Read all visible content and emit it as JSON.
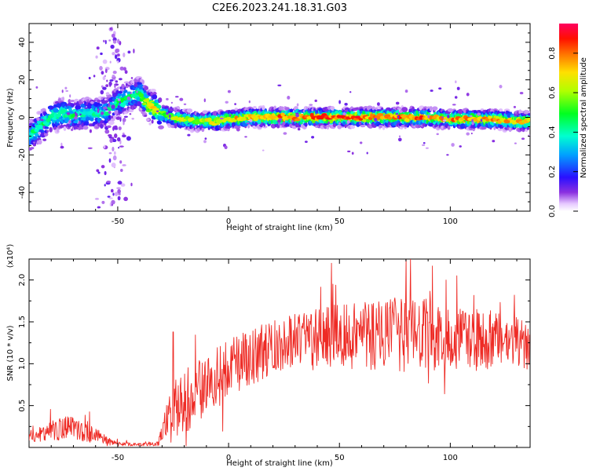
{
  "title": "C2E6.2023.241.18.31.G03",
  "chart_data": [
    {
      "type": "heatmap",
      "xlabel": "Height of straight line (km)",
      "ylabel": "Frequency (Hz)",
      "xlim": [
        -90,
        136
      ],
      "ylim": [
        -50,
        50
      ],
      "xticks": [
        -50,
        0,
        50,
        100
      ],
      "yticks": [
        -40,
        -20,
        0,
        20,
        40
      ],
      "colorbar": {
        "label": "Normalized spectral amplitude",
        "range": [
          0.0,
          0.95
        ],
        "ticks": [
          0.0,
          0.2,
          0.4,
          0.6,
          0.8
        ]
      },
      "ridge": {
        "height_km": [
          -90,
          -85,
          -80,
          -75,
          -70,
          -65,
          -60,
          -55,
          -50,
          -45,
          -40,
          -36,
          -33,
          -30,
          -25,
          -20,
          -15,
          -10,
          -5,
          0,
          10,
          20,
          30,
          40,
          50,
          60,
          70,
          80,
          90,
          100,
          110,
          120,
          130,
          136
        ],
        "frequency_hz": [
          -11,
          -5,
          0,
          2,
          1,
          2,
          2,
          3,
          8,
          11,
          13,
          6,
          5,
          2,
          0,
          -1,
          -2,
          -2,
          -2,
          -1,
          0,
          0,
          0,
          0,
          0,
          0,
          0,
          0,
          0,
          -1,
          -1,
          -1,
          -2,
          -2
        ],
        "amplitude": [
          0.45,
          0.5,
          0.5,
          0.5,
          0.5,
          0.45,
          0.45,
          0.45,
          0.5,
          0.5,
          0.55,
          0.8,
          0.8,
          0.6,
          0.7,
          0.75,
          0.7,
          0.75,
          0.75,
          0.8,
          0.85,
          0.9,
          0.9,
          0.9,
          0.92,
          0.92,
          0.9,
          0.9,
          0.88,
          0.85,
          0.85,
          0.85,
          0.8,
          0.8
        ]
      }
    },
    {
      "type": "line",
      "xlabel": "Height of straight line (km)",
      "ylabel": "SNR (10 * v/v)",
      "multiplier": "(x10⁴)",
      "xlim": [
        -90,
        136
      ],
      "ylim": [
        0.0,
        2.25
      ],
      "xticks": [
        -50,
        0,
        50,
        100
      ],
      "yticks": [
        0.5,
        1.0,
        1.5,
        2.0
      ],
      "color": "#ee2a24",
      "series": [
        {
          "height_km": [
            -90,
            -80,
            -70,
            -65,
            -60,
            -55,
            -50,
            -40,
            -32,
            -30,
            -28,
            -25,
            -22,
            -20,
            -10,
            0,
            10,
            20,
            30,
            40,
            50,
            60,
            70,
            80,
            90,
            100,
            110,
            120,
            130,
            136
          ],
          "snr_mean": [
            0.12,
            0.2,
            0.25,
            0.22,
            0.15,
            0.08,
            0.04,
            0.03,
            0.04,
            0.18,
            0.28,
            0.42,
            0.5,
            0.55,
            0.75,
            0.95,
            1.08,
            1.2,
            1.3,
            1.32,
            1.35,
            1.35,
            1.33,
            1.35,
            1.32,
            1.3,
            1.28,
            1.28,
            1.25,
            1.22
          ],
          "snr_spread": [
            0.08,
            0.12,
            0.15,
            0.15,
            0.1,
            0.05,
            0.03,
            0.02,
            0.03,
            0.12,
            0.25,
            0.35,
            0.4,
            0.4,
            0.35,
            0.35,
            0.35,
            0.32,
            0.32,
            0.35,
            0.4,
            0.45,
            0.45,
            0.45,
            0.45,
            0.4,
            0.38,
            0.35,
            0.3,
            0.3
          ],
          "peaks": [
            [
              -25,
              1.38
            ],
            [
              80,
              2.25
            ],
            [
              82,
              2.25
            ],
            [
              98,
              2.0
            ],
            [
              103,
              2.05
            ],
            [
              47,
              1.95
            ]
          ]
        }
      ]
    }
  ]
}
